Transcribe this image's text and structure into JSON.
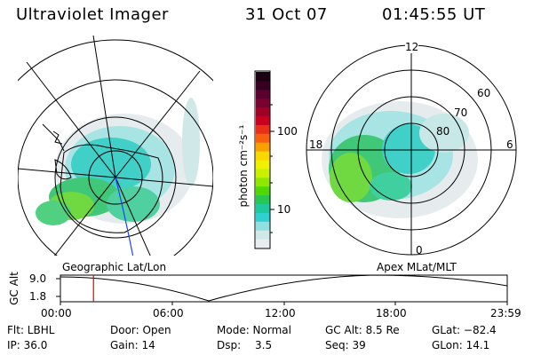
{
  "header": {
    "title": "Ultraviolet Imager",
    "date": "31 Oct 07",
    "time": "01:45:55 UT"
  },
  "colorbar": {
    "unit_label": "photon cm⁻²s⁻¹",
    "ticks": [
      "100",
      "10"
    ],
    "colors": [
      "#1a0010",
      "#380020",
      "#5a0030",
      "#7a0030",
      "#a00028",
      "#c80020",
      "#e83018",
      "#f86010",
      "#f8a000",
      "#f8d800",
      "#f0f000",
      "#c8f000",
      "#90e800",
      "#50d800",
      "#28c850",
      "#20c8a0",
      "#30d0d0",
      "#90e0e0",
      "#d0e8e8",
      "#e8eef0"
    ]
  },
  "left_panel": {
    "label": "Geographic Lat/Lon"
  },
  "right_panel": {
    "label": "Apex  MLat/MLT",
    "mlt_labels": [
      "12",
      "18",
      "6",
      "0"
    ],
    "lat_labels": [
      "60",
      "70",
      "80"
    ]
  },
  "timeline": {
    "y_label": "GC Alt",
    "y_ticks": [
      "9.0",
      "1.8"
    ],
    "x_ticks": [
      "00:00",
      "06:00",
      "12:00",
      "18:00",
      "23:59"
    ],
    "marker_color": "#e00000",
    "current_time_fraction": 0.074
  },
  "info": {
    "row1": {
      "flt": "Flt: LBHL",
      "door": "Door: Open",
      "mode": "Mode: Normal",
      "gc_alt": "GC Alt: 8.5 Re",
      "glat": "GLat: −82.4"
    },
    "row2": {
      "ip": "IP: 36.0",
      "gain": "Gain: 14",
      "dsp_label": "Dsp:",
      "dsp_value": "3.5",
      "seq": "Seq: 39",
      "glon": "GLon:  14.1"
    }
  }
}
